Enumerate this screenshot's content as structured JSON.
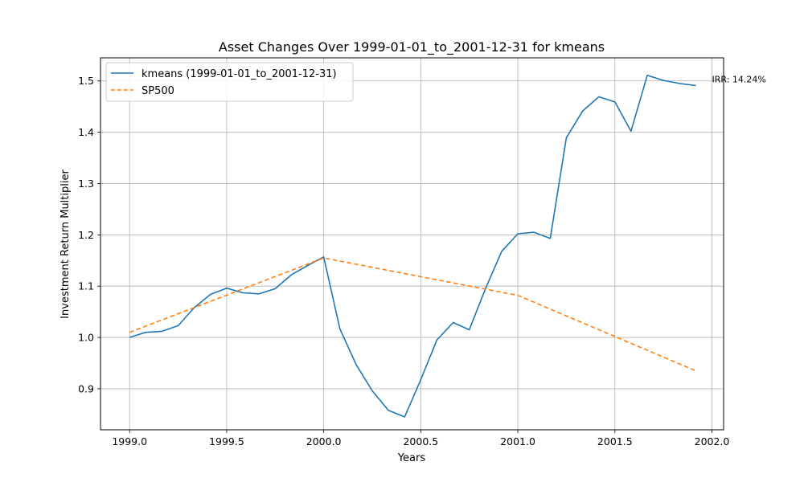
{
  "chart_data": {
    "type": "line",
    "title": "Asset Changes Over 1999-01-01_to_2001-12-31 for kmeans",
    "xlabel": "Years",
    "ylabel": "Investment Return Multiplier",
    "xlim": [
      1998.85,
      2002.06
    ],
    "ylim": [
      0.82,
      1.545
    ],
    "xticks": [
      1999.0,
      1999.5,
      2000.0,
      2000.5,
      2001.0,
      2001.5,
      2002.0
    ],
    "xtick_labels": [
      "1999.0",
      "1999.5",
      "2000.0",
      "2000.5",
      "2001.0",
      "2001.5",
      "2002.0"
    ],
    "yticks": [
      0.9,
      1.0,
      1.1,
      1.2,
      1.3,
      1.4,
      1.5
    ],
    "ytick_labels": [
      "0.9",
      "1.0",
      "1.1",
      "1.2",
      "1.3",
      "1.4",
      "1.5"
    ],
    "grid": true,
    "legend_position": "top-left",
    "series": [
      {
        "name": "kmeans (1999-01-01_to_2001-12-31)",
        "color": "#1f77b4",
        "style": "solid",
        "x": [
          1999.0,
          1999.083,
          1999.167,
          1999.25,
          1999.333,
          1999.417,
          1999.5,
          1999.583,
          1999.667,
          1999.75,
          1999.833,
          1999.917,
          2000.0,
          2000.083,
          2000.167,
          2000.25,
          2000.333,
          2000.417,
          2000.5,
          2000.583,
          2000.667,
          2000.75,
          2000.833,
          2000.917,
          2001.0,
          2001.083,
          2001.167,
          2001.25,
          2001.333,
          2001.417,
          2001.5,
          2001.583,
          2001.667,
          2001.75,
          2001.833,
          2001.917
        ],
        "y": [
          1.0,
          1.01,
          1.012,
          1.023,
          1.058,
          1.084,
          1.096,
          1.087,
          1.085,
          1.095,
          1.122,
          1.14,
          1.157,
          1.017,
          0.947,
          0.896,
          0.858,
          0.845,
          0.918,
          0.995,
          1.029,
          1.015,
          1.095,
          1.168,
          1.202,
          1.205,
          1.193,
          1.389,
          1.441,
          1.469,
          1.459,
          1.402,
          1.511,
          1.501,
          1.495,
          1.491
        ]
      },
      {
        "name": "SP500",
        "color": "#ff7f0e",
        "style": "dashed",
        "x": [
          1999.0,
          2000.0,
          2001.0,
          2001.917
        ],
        "y": [
          1.01,
          1.155,
          1.082,
          0.935
        ]
      }
    ],
    "annotations": [
      {
        "text": "IRR: 14.24%",
        "x": 2002.0,
        "y": 1.5
      }
    ]
  }
}
